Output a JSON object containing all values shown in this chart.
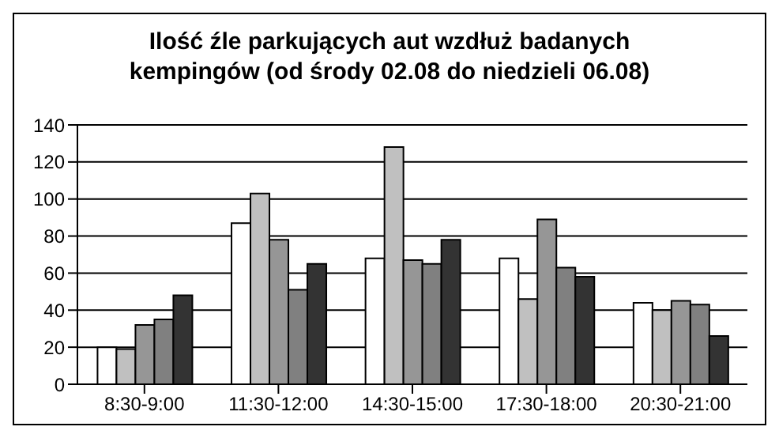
{
  "chart_data": {
    "type": "bar",
    "title": "Ilość źle parkujących aut wzdłuż badanych kempingów (od środy 02.08 do niedzieli 06.08)",
    "categories": [
      "8:30-9:00",
      "11:30-12:00",
      "14:30-15:00",
      "17:30-18:00",
      "20:30-21:00"
    ],
    "series": [
      {
        "color": "#ffffff",
        "values": [
          20,
          87,
          68,
          68,
          44
        ]
      },
      {
        "color": "#c0c0c0",
        "values": [
          19,
          103,
          128,
          46,
          40
        ]
      },
      {
        "color": "#969696",
        "values": [
          32,
          78,
          67,
          89,
          45
        ]
      },
      {
        "color": "#808080",
        "values": [
          35,
          51,
          65,
          63,
          43
        ]
      },
      {
        "color": "#333333",
        "values": [
          48,
          65,
          78,
          58,
          26
        ]
      }
    ],
    "ylim": [
      0,
      140
    ],
    "yticks": [
      0,
      20,
      40,
      60,
      80,
      100,
      120,
      140
    ],
    "grid": "y",
    "legend": false
  }
}
